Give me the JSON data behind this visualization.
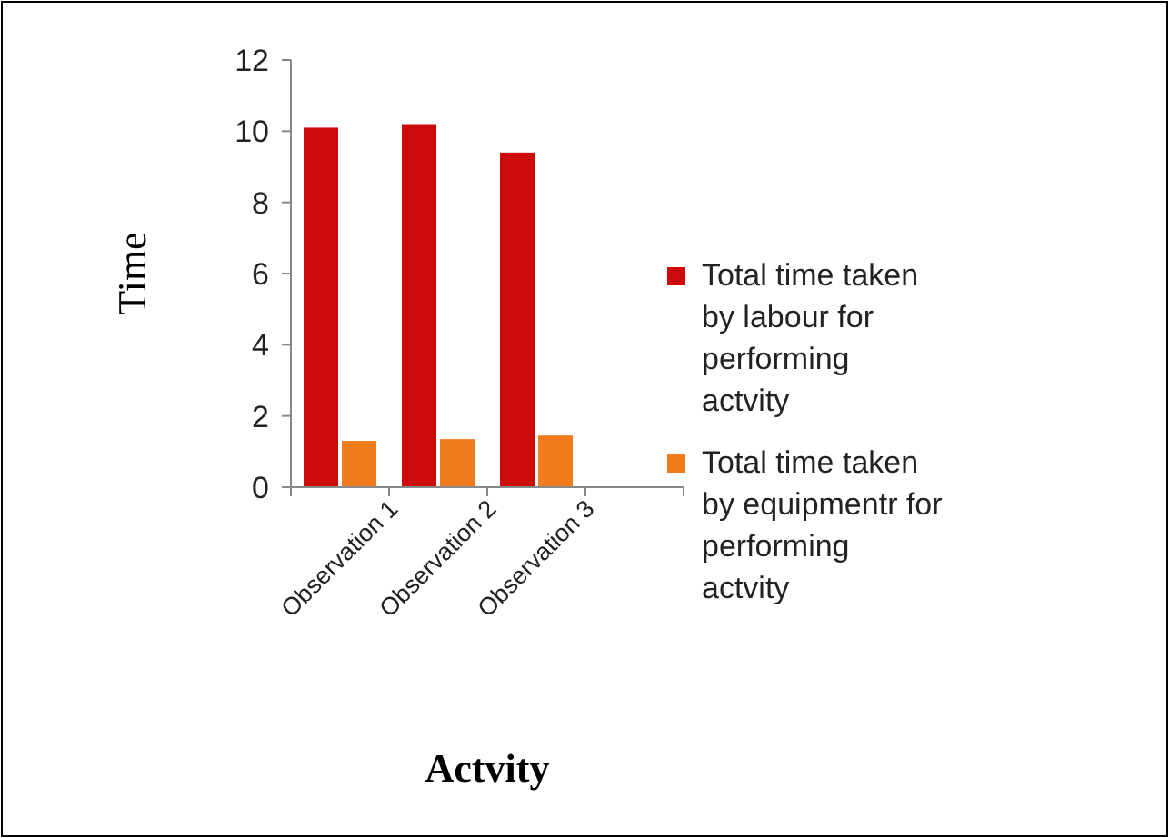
{
  "chart_data": {
    "type": "bar",
    "xlabel": "Actvity",
    "ylabel": "Time",
    "categories": [
      "Observation 1",
      "Observation 2",
      "Observation 3",
      null
    ],
    "series": [
      {
        "name": "Total time taken by labour for performing actvity",
        "color": "#cc0a0a",
        "values": [
          10.1,
          10.2,
          9.4,
          null
        ]
      },
      {
        "name": "Total time taken by equipmentr for performing actvity",
        "color": "#f07c1c",
        "values": [
          1.3,
          1.35,
          1.45,
          null
        ]
      }
    ],
    "ylim": [
      0,
      12
    ],
    "yticks": [
      0,
      2,
      4,
      6,
      8,
      10,
      12
    ],
    "grid": false,
    "legend": "right"
  }
}
